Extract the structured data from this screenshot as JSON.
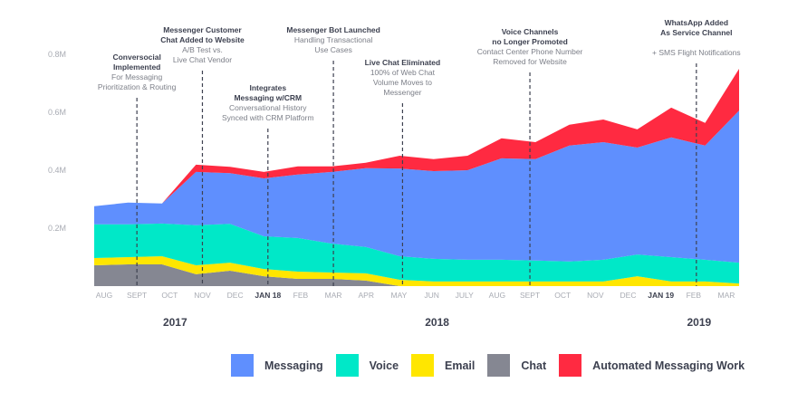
{
  "chart_data": {
    "type": "area",
    "stacked": true,
    "title": "",
    "xlabel": "",
    "ylabel": "",
    "ylim": [
      0,
      0.8
    ],
    "yunit": "M",
    "yticks": [
      "0.2M",
      "0.4M",
      "0.6M",
      "0.8M"
    ],
    "ytick_values": [
      0.2,
      0.4,
      0.6,
      0.8
    ],
    "grid": false,
    "categories": [
      "AUG",
      "SEPT",
      "OCT",
      "NOV",
      "DEC",
      "JAN 18",
      "FEB",
      "MAR",
      "APR",
      "MAY",
      "JUN",
      "JULY",
      "AUG",
      "SEPT",
      "OCT",
      "NOV",
      "DEC",
      "JAN 19",
      "FEB",
      "MAR"
    ],
    "bold_categories": [
      "JAN 18",
      "JAN 19"
    ],
    "years": [
      {
        "label": "2017",
        "at_index": 2
      },
      {
        "label": "2018",
        "at_index": 10
      },
      {
        "label": "2019",
        "at_index": 18
      }
    ],
    "series": [
      {
        "name": "Chat",
        "color": "#858792",
        "values": [
          0.072,
          0.075,
          0.075,
          0.041,
          0.053,
          0.034,
          0.025,
          0.025,
          0.019,
          0,
          0,
          0,
          0,
          0,
          0,
          0,
          0,
          0,
          0,
          0
        ]
      },
      {
        "name": "Email",
        "color": "#ffe600",
        "values": [
          0.025,
          0.025,
          0.028,
          0.031,
          0.028,
          0.025,
          0.025,
          0.022,
          0.025,
          0.022,
          0.016,
          0.016,
          0.016,
          0.016,
          0.016,
          0.016,
          0.034,
          0.016,
          0.016,
          0.009
        ]
      },
      {
        "name": "Voice",
        "color": "#00e8c8",
        "values": [
          0.116,
          0.113,
          0.113,
          0.138,
          0.134,
          0.113,
          0.116,
          0.1,
          0.091,
          0.081,
          0.078,
          0.075,
          0.075,
          0.072,
          0.069,
          0.075,
          0.075,
          0.084,
          0.075,
          0.072
        ]
      },
      {
        "name": "Messaging",
        "color": "#5f8ffe",
        "values": [
          0.063,
          0.075,
          0.069,
          0.184,
          0.175,
          0.2,
          0.219,
          0.247,
          0.272,
          0.303,
          0.303,
          0.309,
          0.35,
          0.35,
          0.4,
          0.406,
          0.369,
          0.413,
          0.394,
          0.525
        ]
      },
      {
        "name": "Automated Messaging Work",
        "color": "#ff2a41",
        "values": [
          0,
          0,
          0,
          0.025,
          0.022,
          0.022,
          0.028,
          0.019,
          0.019,
          0.044,
          0.041,
          0.05,
          0.069,
          0.059,
          0.072,
          0.078,
          0.063,
          0.103,
          0.078,
          0.144
        ]
      }
    ],
    "legend": {
      "placement": "bottom",
      "order": [
        "Messaging",
        "Voice",
        "Email",
        "Chat",
        "Automated Messaging Work"
      ]
    },
    "annotations": [
      {
        "at_index": 1,
        "title": [
          "Conversocial",
          "Implemented"
        ],
        "text": [
          "For Messaging",
          "Prioritization & Routing"
        ]
      },
      {
        "at_index": 3,
        "title": [
          "Messenger Customer",
          "Chat Added to Website"
        ],
        "text": [
          "A/B Test vs.",
          "Live Chat Vendor"
        ]
      },
      {
        "at_index": 5,
        "title": [
          "Integrates",
          "Messaging w/CRM"
        ],
        "text": [
          "Conversational History",
          "Synced with CRM Platform"
        ]
      },
      {
        "at_index": 7,
        "title": [
          "Messenger Bot Launched"
        ],
        "text": [
          "Handling Transactional",
          "Use Cases"
        ]
      },
      {
        "at_index": 9,
        "title": [
          "Live Chat Eliminated"
        ],
        "text": [
          "100% of Web Chat",
          "Volume Moves to",
          "Messenger"
        ]
      },
      {
        "at_index": 13,
        "title": [
          "Voice Channels",
          "no Longer Promoted"
        ],
        "text": [
          "Contact Center Phone Number",
          "Removed for Website"
        ]
      },
      {
        "at_index": 18,
        "title": [
          "WhatsApp Added",
          "As Service Channel"
        ],
        "text": [
          "",
          "+ SMS Flight Notifications"
        ]
      }
    ]
  }
}
